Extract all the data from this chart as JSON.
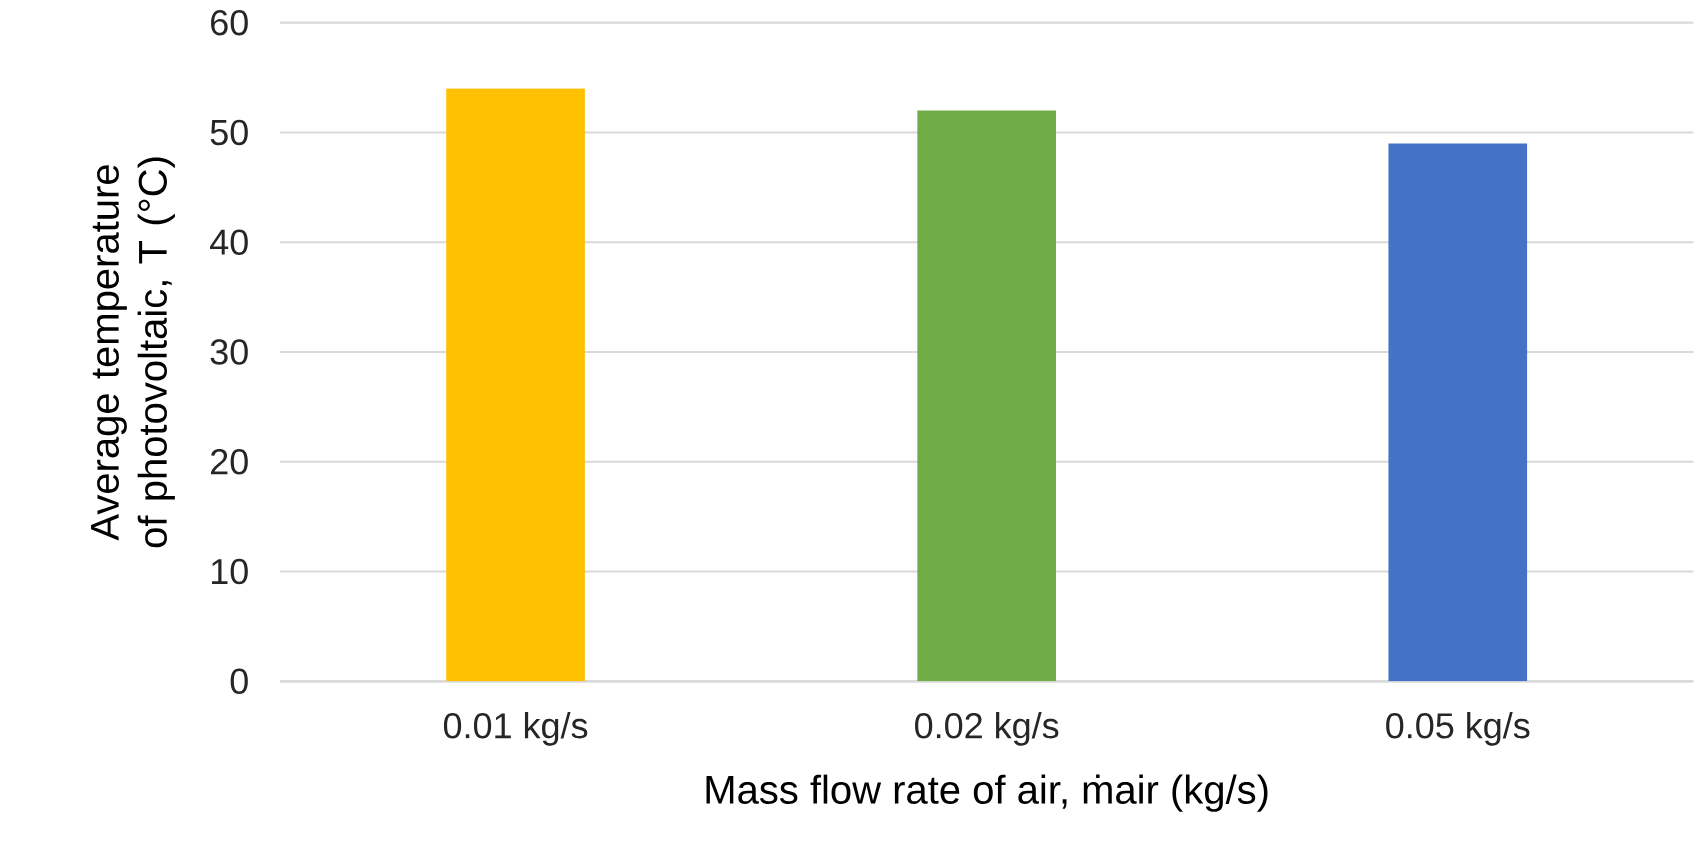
{
  "chart_data": {
    "type": "bar",
    "xlabel": "Mass flow rate of air, ṁair  (kg/s)",
    "ylabel": "Average temperature of photovoltaic, T (°C)",
    "categories": [
      "0.01 kg/s",
      "0.02 kg/s",
      "0.05 kg/s"
    ],
    "values": [
      54,
      52,
      49
    ],
    "colors": [
      "#ffc000",
      "#70ad47",
      "#4472c4"
    ],
    "ylim": [
      0,
      60
    ],
    "yticks": [
      0,
      10,
      20,
      30,
      40,
      50,
      60
    ],
    "grid": "y"
  }
}
